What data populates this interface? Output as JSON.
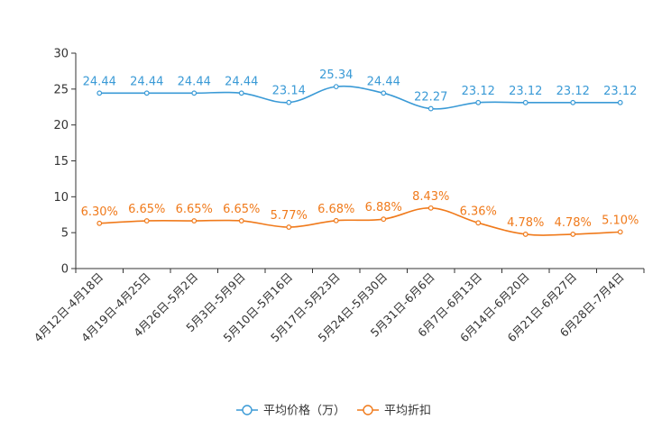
{
  "chart_data": {
    "type": "line",
    "categories": [
      "4月12日-4月18日",
      "4月19日-4月25日",
      "4月26日-5月2日",
      "5月3日-5月9日",
      "5月10日-5月16日",
      "5月17日-5月23日",
      "5月24日-5月30日",
      "5月31日-6月6日",
      "6月7日-6月13日",
      "6月14日-6月20日",
      "6月21日-6月27日",
      "6月28日-7月4日"
    ],
    "ylim": [
      0,
      30
    ],
    "yticks": [
      "0",
      "5",
      "10",
      "15",
      "20",
      "25",
      "30"
    ],
    "series": [
      {
        "name": "平均价格（万）",
        "color": "#3a9ad6",
        "values": [
          24.44,
          24.44,
          24.44,
          24.44,
          23.14,
          25.34,
          24.44,
          22.27,
          23.12,
          23.12,
          23.12,
          23.12
        ],
        "labels": [
          "24.44",
          "24.44",
          "24.44",
          "24.44",
          "23.14",
          "25.34",
          "24.44",
          "22.27",
          "23.12",
          "23.12",
          "23.12",
          "23.12"
        ]
      },
      {
        "name": "平均折扣",
        "color": "#f07a1b",
        "values": [
          6.3,
          6.65,
          6.65,
          6.65,
          5.77,
          6.68,
          6.88,
          8.43,
          6.36,
          4.78,
          4.78,
          5.1
        ],
        "labels": [
          "6.30%",
          "6.65%",
          "6.65%",
          "6.65%",
          "5.77%",
          "6.68%",
          "6.88%",
          "8.43%",
          "6.36%",
          "4.78%",
          "4.78%",
          "5.10%"
        ]
      }
    ]
  }
}
